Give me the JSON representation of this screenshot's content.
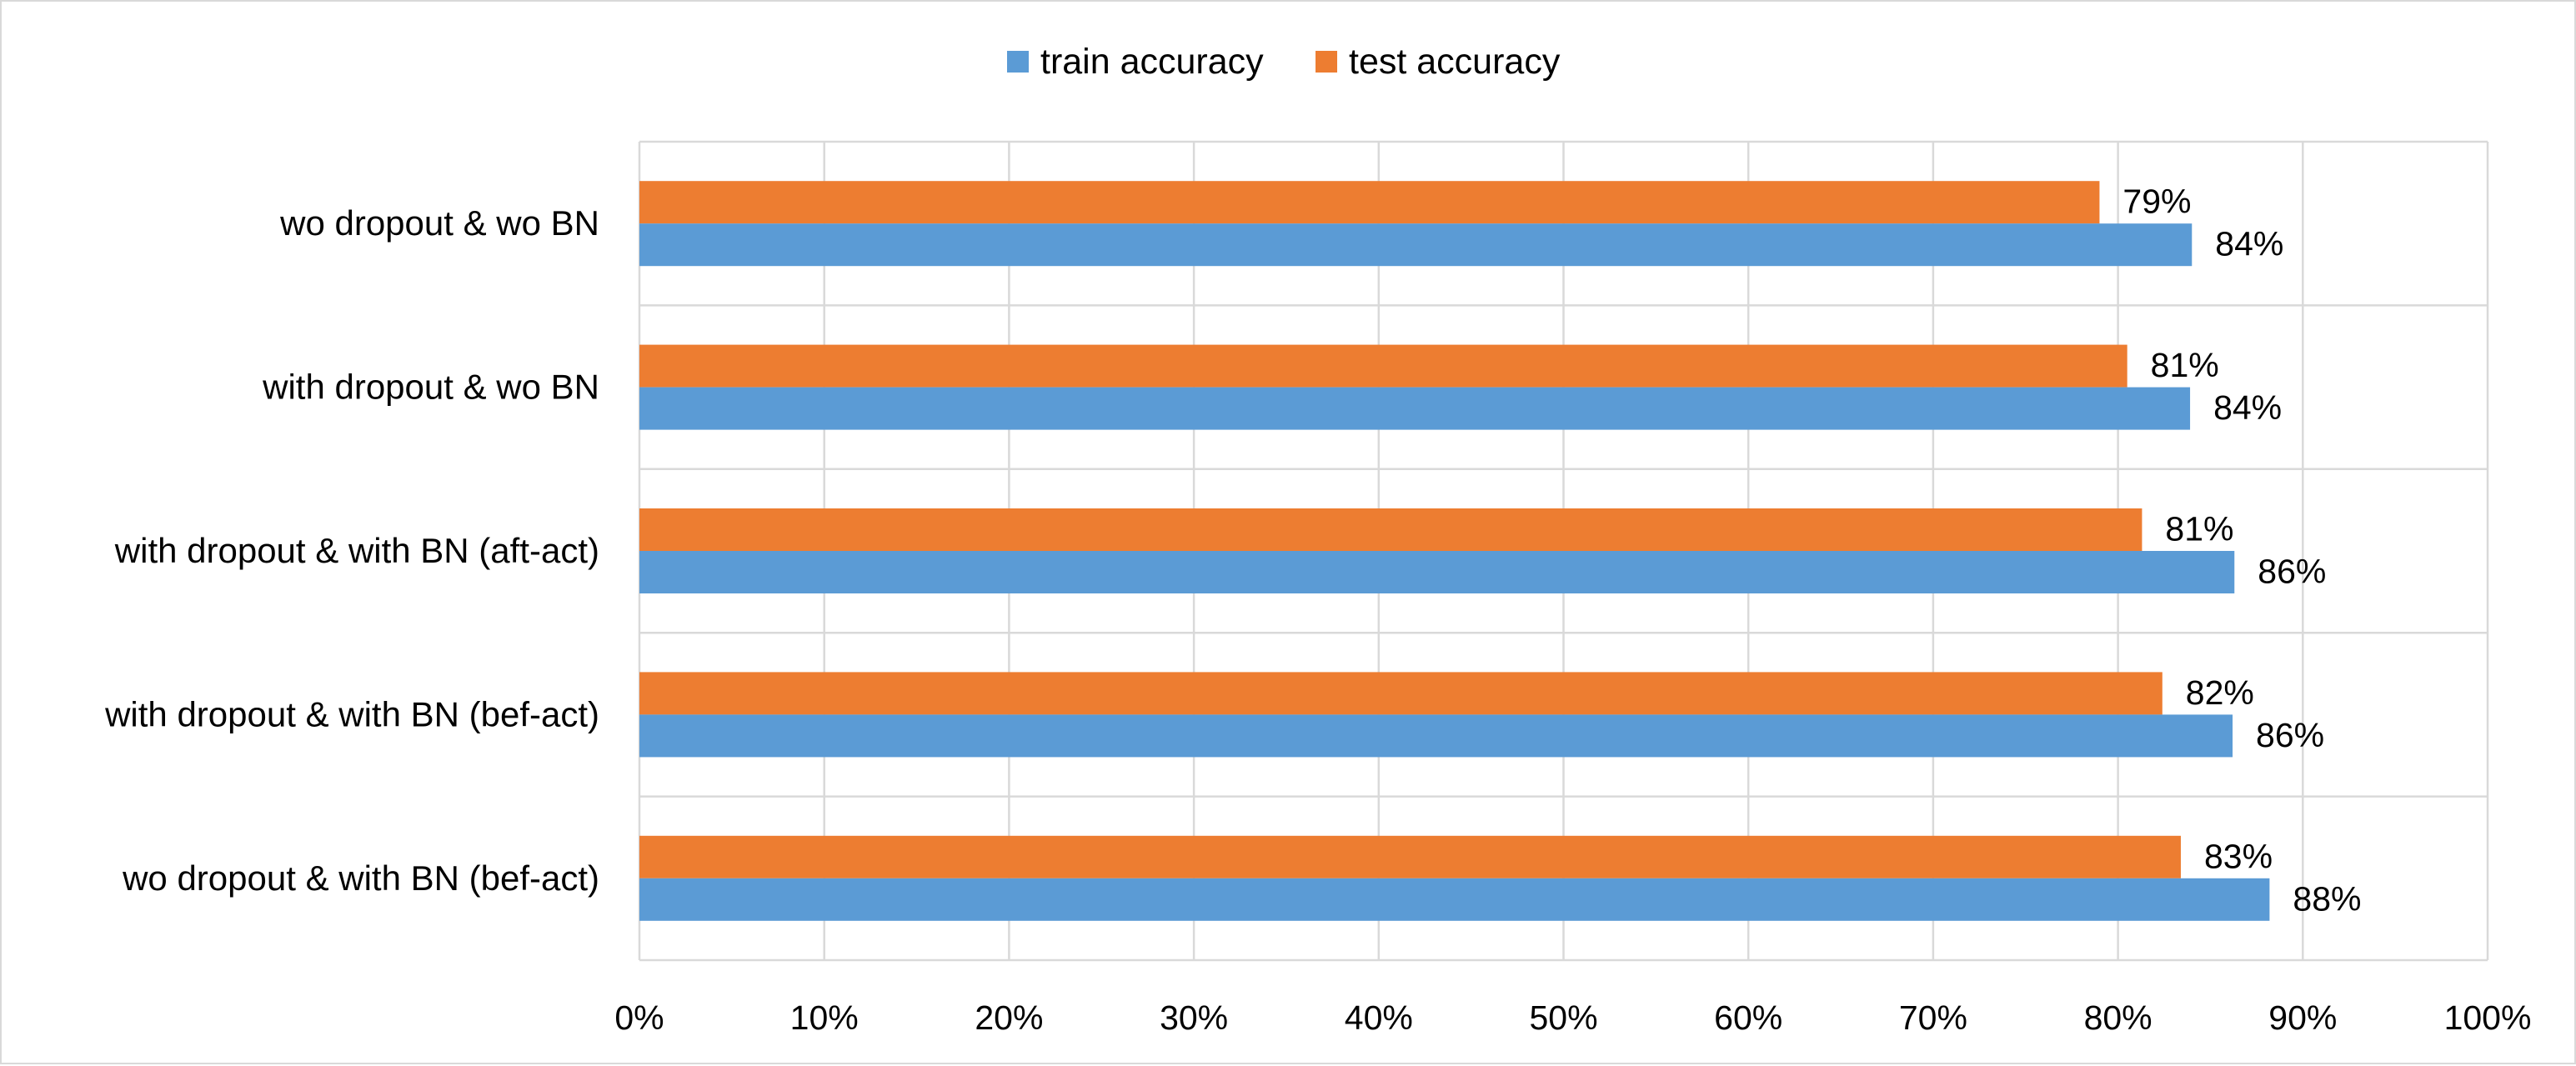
{
  "chart_data": {
    "type": "bar",
    "orientation": "horizontal",
    "categories": [
      "wo dropout &  wo BN",
      "with dropout & wo BN",
      "with dropout & with BN (aft-act)",
      "with dropout & with BN  (bef-act)",
      "wo dropout & with  BN (bef-act)"
    ],
    "series": [
      {
        "name": "test accuracy",
        "color": "#ED7D31",
        "values": [
          0.79,
          0.805,
          0.813,
          0.824,
          0.834
        ],
        "labels": [
          "79%",
          "81%",
          "81%",
          "82%",
          "83%"
        ]
      },
      {
        "name": "train accuracy",
        "color": "#5B9BD5",
        "values": [
          0.84,
          0.839,
          0.863,
          0.862,
          0.882
        ],
        "labels": [
          "84%",
          "84%",
          "86%",
          "86%",
          "88%"
        ]
      }
    ],
    "xlim": [
      0,
      1
    ],
    "xticks": [
      0,
      0.1,
      0.2,
      0.3,
      0.4,
      0.5,
      0.6,
      0.7,
      0.8,
      0.9,
      1.0
    ],
    "xtick_labels": [
      "0%",
      "10%",
      "20%",
      "30%",
      "40%",
      "50%",
      "60%",
      "70%",
      "80%",
      "90%",
      "100%"
    ],
    "title": "",
    "xlabel": "",
    "ylabel": "",
    "grid": true,
    "legend_position": "top-center"
  }
}
